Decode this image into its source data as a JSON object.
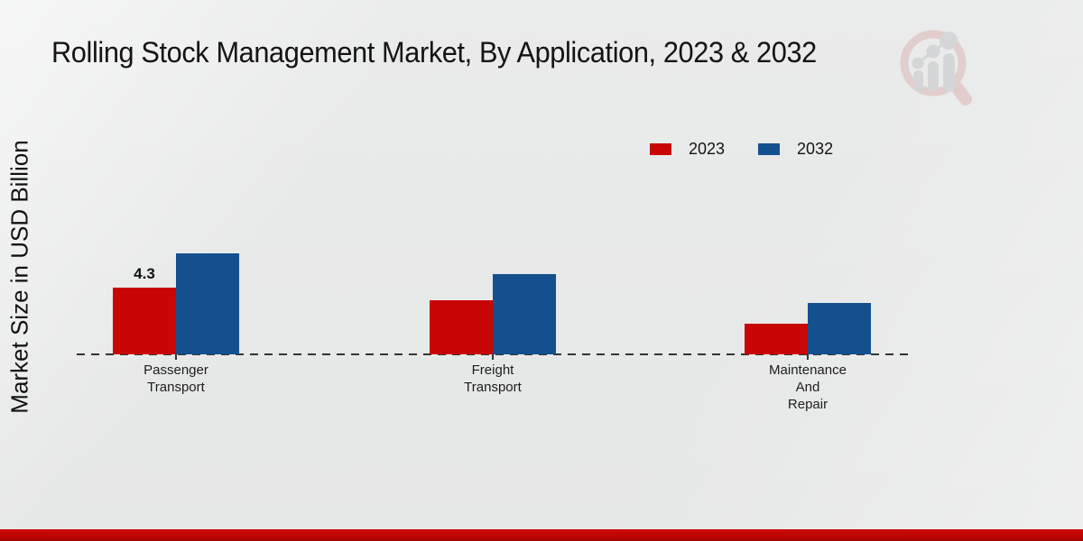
{
  "header": {
    "title": "Rolling Stock Management Market, By Application, 2023 & 2032"
  },
  "axes": {
    "y_label": "Market Size in USD Billion"
  },
  "legend": {
    "items": [
      {
        "label": "2023",
        "color": "#c90606"
      },
      {
        "label": "2032",
        "color": "#14508e"
      }
    ]
  },
  "chart_data": {
    "type": "bar",
    "title": "Rolling Stock Management Market, By Application, 2023 & 2032",
    "xlabel": "",
    "ylabel": "Market Size in USD Billion",
    "categories": [
      "Passenger Transport",
      "Freight Transport",
      "Maintenance And Repair"
    ],
    "category_lines": [
      [
        "Passenger",
        "Transport"
      ],
      [
        "Freight",
        "Transport"
      ],
      [
        "Maintenance",
        "And",
        "Repair"
      ]
    ],
    "series": [
      {
        "name": "2023",
        "color": "#c90606",
        "values": [
          4.3,
          3.5,
          2.0
        ]
      },
      {
        "name": "2032",
        "color": "#14508e",
        "values": [
          6.5,
          5.2,
          3.3
        ]
      }
    ],
    "bar_labels": [
      {
        "series_index": 0,
        "category_index": 0,
        "text": "4.3"
      }
    ],
    "ylim": [
      0,
      7
    ],
    "grid": false,
    "legend_position": "top-right",
    "baseline_style": "dashed",
    "axis_line": "none"
  },
  "branding": {
    "logo": "magnifier-bar-chart-logo",
    "footer_band_color": "#c00505"
  }
}
